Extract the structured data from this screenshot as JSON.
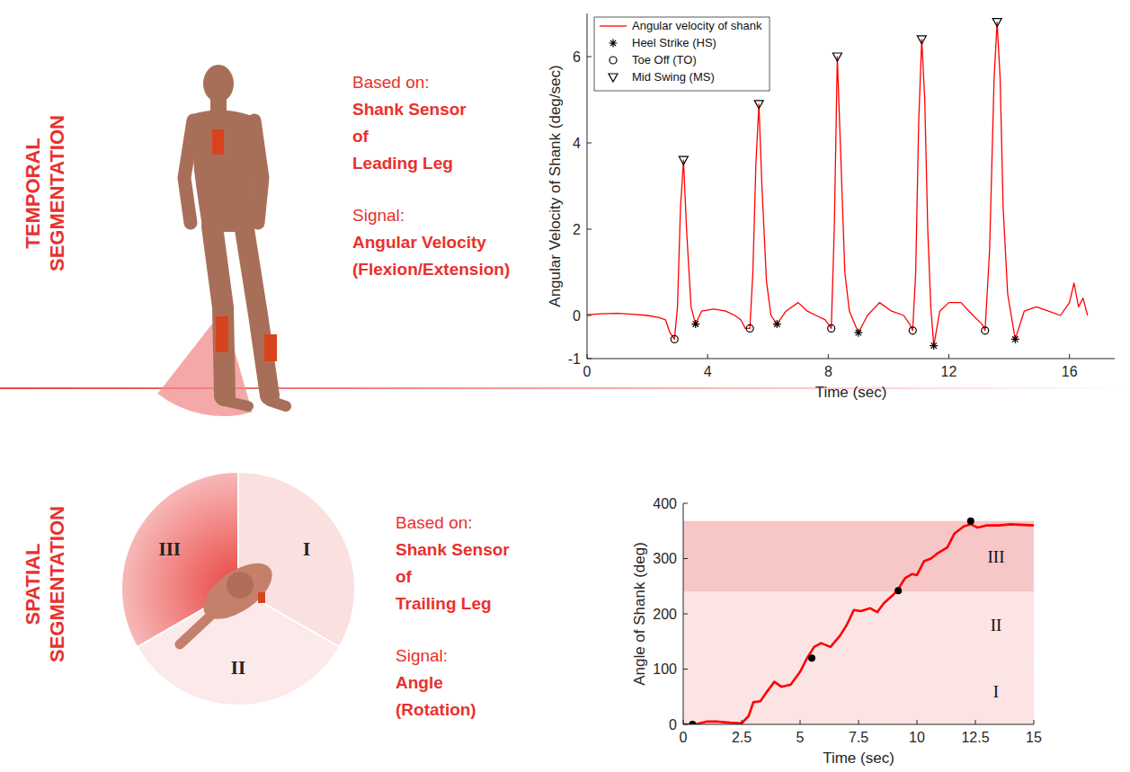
{
  "panels": [
    {
      "title": "TEMPORAL SEGMENTATION",
      "based_on": {
        "label": "Based on:",
        "lines": [
          "Shank Sensor",
          "of",
          "Leading Leg"
        ]
      },
      "signal": {
        "label": "Signal:",
        "lines": [
          "Angular Velocity",
          "(Flexion/Extension)"
        ]
      }
    },
    {
      "title": "SPATIAL SEGMENTATION",
      "based_on": {
        "label": "Based on:",
        "lines": [
          "Shank Sensor",
          "of",
          "Trailing Leg"
        ]
      },
      "signal": {
        "label": "Signal:",
        "lines": [
          "Angle",
          "(Rotation)"
        ]
      },
      "sectors": [
        "I",
        "II",
        "III"
      ]
    }
  ],
  "chart_data": [
    {
      "type": "line",
      "xlabel": "Time (sec)",
      "ylabel": "Angular Velocity of Shank (deg/sec)",
      "xlim": [
        0,
        17.5
      ],
      "ylim": [
        -1,
        7
      ],
      "xticks": [
        0,
        4,
        8,
        12,
        16
      ],
      "yticks": [
        -1,
        0,
        2,
        4,
        6
      ],
      "legend": "upper left",
      "series": [
        {
          "name": "Angular velocity of shank",
          "type": "line",
          "color": "#ff0000",
          "x": [
            0,
            0.5,
            1,
            1.5,
            2,
            2.4,
            2.6,
            2.75,
            2.9,
            3.0,
            3.1,
            3.2,
            3.3,
            3.45,
            3.6,
            3.8,
            4.2,
            4.6,
            4.9,
            5.1,
            5.25,
            5.4,
            5.5,
            5.6,
            5.7,
            5.8,
            5.95,
            6.1,
            6.3,
            6.6,
            7.0,
            7.3,
            7.6,
            7.9,
            8.1,
            8.2,
            8.3,
            8.4,
            8.55,
            8.7,
            9.0,
            9.3,
            9.7,
            10.1,
            10.5,
            10.7,
            10.8,
            10.9,
            11.0,
            11.1,
            11.2,
            11.3,
            11.4,
            11.5,
            11.7,
            12.0,
            12.4,
            12.8,
            13.1,
            13.2,
            13.35,
            13.5,
            13.6,
            13.7,
            13.8,
            13.95,
            14.2,
            14.5,
            14.9,
            15.3,
            15.7,
            16.0,
            16.15,
            16.3,
            16.45,
            16.6
          ],
          "values": [
            0.02,
            0.04,
            0.05,
            0.03,
            0.0,
            -0.05,
            -0.1,
            -0.4,
            -0.55,
            0.2,
            2.5,
            3.6,
            2.0,
            0.2,
            -0.2,
            0.1,
            0.15,
            0.1,
            0.0,
            -0.1,
            -0.3,
            -0.3,
            1.0,
            3.5,
            4.9,
            3.0,
            0.8,
            0.0,
            -0.2,
            0.1,
            0.3,
            0.1,
            0.0,
            -0.1,
            -0.3,
            2.0,
            6.0,
            4.0,
            1.0,
            0.1,
            -0.4,
            0.0,
            0.3,
            0.1,
            0.0,
            -0.2,
            -0.35,
            1.0,
            4.5,
            6.4,
            5.0,
            2.0,
            0.2,
            -0.7,
            0.1,
            0.3,
            0.3,
            0.0,
            -0.2,
            -0.35,
            1.5,
            5.5,
            6.8,
            5.5,
            2.5,
            0.5,
            -0.55,
            0.1,
            0.2,
            0.1,
            0.0,
            0.3,
            0.75,
            0.2,
            0.4,
            0.0
          ]
        },
        {
          "name": "Heel Strike (HS)",
          "type": "scatter",
          "marker": "asterisk",
          "color": "#000000",
          "x": [
            3.6,
            6.3,
            9.0,
            11.5,
            14.2
          ],
          "values": [
            -0.2,
            -0.2,
            -0.4,
            -0.7,
            -0.55
          ]
        },
        {
          "name": "Toe Off (TO)",
          "type": "scatter",
          "marker": "circle",
          "color": "#000000",
          "x": [
            2.9,
            5.4,
            8.1,
            10.8,
            13.2
          ],
          "values": [
            -0.55,
            -0.3,
            -0.3,
            -0.35,
            -0.35
          ]
        },
        {
          "name": "Mid Swing (MS)",
          "type": "scatter",
          "marker": "triangle-down",
          "color": "#000000",
          "x": [
            3.2,
            5.7,
            8.3,
            11.1,
            13.6
          ],
          "values": [
            3.6,
            4.9,
            6.0,
            6.4,
            6.8
          ]
        }
      ]
    },
    {
      "type": "line",
      "xlabel": "Time (sec)",
      "ylabel": "Angle of Shank (deg)",
      "xlim": [
        0,
        15
      ],
      "ylim": [
        0,
        400
      ],
      "xticks": [
        0,
        2.5,
        5,
        7.5,
        10,
        12.5,
        15
      ],
      "yticks": [
        0,
        100,
        200,
        300,
        400
      ],
      "regions": [
        {
          "label": "I",
          "from": 0,
          "to": 120,
          "color": "#fce4e4"
        },
        {
          "label": "II",
          "from": 120,
          "to": 240,
          "color": "#fce4e4"
        },
        {
          "label": "III",
          "from": 240,
          "to": 368,
          "color": "#f7c6c6"
        }
      ],
      "series": [
        {
          "type": "line",
          "color": "#ff0000",
          "x": [
            0,
            0.5,
            1,
            1.5,
            2,
            2.5,
            2.8,
            3,
            3.3,
            3.6,
            3.9,
            4.2,
            4.6,
            5,
            5.3,
            5.6,
            5.9,
            6.3,
            6.7,
            7,
            7.3,
            7.6,
            8,
            8.3,
            8.6,
            9,
            9.2,
            9.5,
            9.8,
            10,
            10.3,
            10.6,
            10.9,
            11.3,
            11.6,
            12,
            12.3,
            12.6,
            13,
            13.5,
            14,
            15
          ],
          "values": [
            0,
            0,
            5,
            5,
            3,
            2,
            15,
            40,
            42,
            60,
            77,
            68,
            72,
            95,
            120,
            140,
            147,
            140,
            160,
            180,
            207,
            205,
            210,
            203,
            220,
            235,
            245,
            265,
            272,
            270,
            295,
            300,
            310,
            320,
            345,
            358,
            362,
            356,
            360,
            360,
            362,
            360
          ]
        },
        {
          "type": "scatter",
          "marker": "circle-filled",
          "color": "#000000",
          "x": [
            0.4,
            5.5,
            9.2,
            12.3
          ],
          "values": [
            0,
            120,
            242,
            368
          ]
        }
      ]
    }
  ]
}
